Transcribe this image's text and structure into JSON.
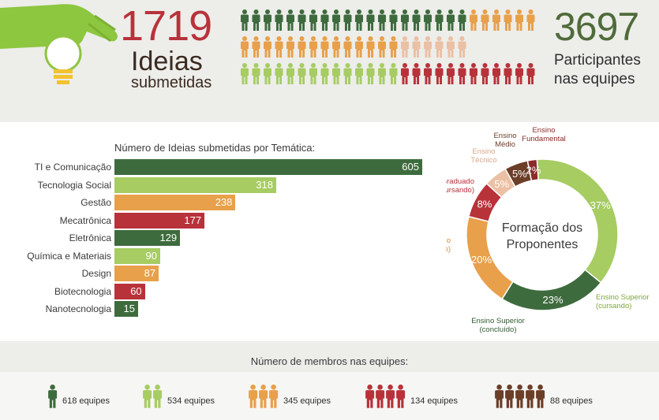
{
  "header": {
    "ideas_count": "1719",
    "ideas_label_1": "Ideias",
    "ideas_label_2": "submetidas",
    "participants_count": "3697",
    "participants_label_1": "Participantes",
    "participants_label_2": "nas equipes"
  },
  "colors": {
    "dark_green": "#3e6b3e",
    "light_green": "#a6cc62",
    "orange": "#e8a04a",
    "red": "#b8323a",
    "peach": "#ebc0a4",
    "brown": "#6b3e28",
    "hand_green": "#8dc63f"
  },
  "people_grid": {
    "rows": [
      {
        "color": "#3e6b3e",
        "count": 20
      },
      {
        "color": "#e8a04a",
        "count": 6
      },
      {
        "color": "#e8a04a",
        "count": 14
      },
      {
        "color": "#ebc0a4",
        "count": 6
      },
      {
        "color": "#a6cc62",
        "count": 14
      },
      {
        "color": "#b8323a",
        "count": 12
      }
    ]
  },
  "chart_data": [
    {
      "type": "bar",
      "title": "Número de Ideias submetidas por Temática:",
      "categories": [
        "TI e Comunicação",
        "Tecnologia Social",
        "Gestão",
        "Mecatrônica",
        "Eletrônica",
        "Química e Materiais",
        "Design",
        "Biotecnologia",
        "Nanotecnologia"
      ],
      "values": [
        605,
        318,
        238,
        177,
        129,
        90,
        87,
        60,
        15
      ],
      "value_labels": [
        "605",
        "318",
        "238",
        "177",
        "129",
        "90",
        "87",
        "60",
        "15"
      ],
      "colors": [
        "#3e6b3e",
        "#a6cc62",
        "#e8a04a",
        "#b8323a",
        "#3e6b3e",
        "#a6cc62",
        "#e8a04a",
        "#b8323a",
        "#3e6b3e"
      ]
    },
    {
      "type": "pie",
      "title_line_1": "Formação dos",
      "title_line_2": "Proponentes",
      "slices": [
        {
          "label": "Ensino Superior (cursando)",
          "label_lines": [
            "Ensino Superior",
            "(cursando)"
          ],
          "value": 37,
          "text": "37%",
          "color": "#a6cc62"
        },
        {
          "label": "Ensino Superior (concluído)",
          "label_lines": [
            "Ensino Superior",
            "(concluído)"
          ],
          "value": 23,
          "text": "23%",
          "color": "#3e6b3e"
        },
        {
          "label": "Pós-Graduado (concluído)",
          "label_lines": [
            "Pós-Graduado",
            "(concluído)"
          ],
          "value": 20,
          "text": "20%",
          "color": "#e8a04a"
        },
        {
          "label": "Pós-Graduado (cursando)",
          "label_lines": [
            "Pós-Graduado",
            "(cursando)"
          ],
          "value": 8,
          "text": "8%",
          "color": "#b8323a"
        },
        {
          "label": "Ensino Técnico",
          "label_lines": [
            "Ensino",
            "Técnico"
          ],
          "value": 5,
          "text": "5%",
          "color": "#ebc0a4"
        },
        {
          "label": "Ensino Médio",
          "label_lines": [
            "Ensino",
            "Médio"
          ],
          "value": 5,
          "text": "5%",
          "color": "#6b3e28"
        },
        {
          "label": "Ensino Fundamental",
          "label_lines": [
            "Ensino",
            "Fundamental"
          ],
          "value": 2,
          "text": "2%",
          "color": "#8a2a2a"
        }
      ]
    },
    {
      "type": "table",
      "title": "Número de membros nas equipes:",
      "groups": [
        {
          "members": 1,
          "label": "618 equipes",
          "color": "#3e6b3e"
        },
        {
          "members": 2,
          "label": "534 equipes",
          "color": "#a6cc62"
        },
        {
          "members": 3,
          "label": "345 equipes",
          "color": "#e8a04a"
        },
        {
          "members": 4,
          "label": "134 equipes",
          "color": "#b8323a"
        },
        {
          "members": 5,
          "label": "88 equipes",
          "color": "#6b3e28"
        }
      ]
    }
  ]
}
